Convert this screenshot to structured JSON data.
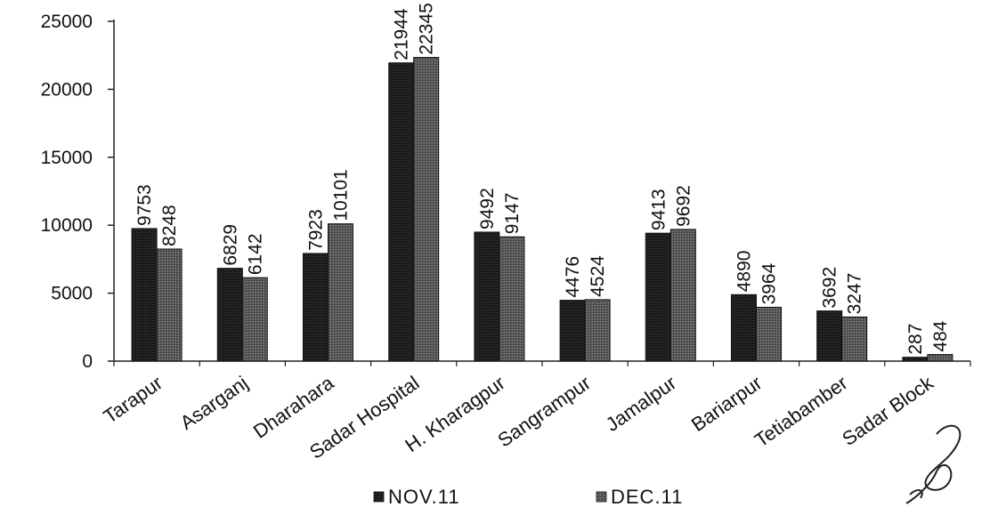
{
  "chart_data": {
    "type": "bar",
    "title": "",
    "xlabel": "",
    "ylabel": "",
    "ylim": [
      0,
      25000
    ],
    "yticks": [
      0,
      5000,
      10000,
      15000,
      20000,
      25000
    ],
    "grid": false,
    "legend_position": "bottom",
    "categories": [
      "Tarapur",
      "Asarganj",
      "Dharahara",
      "Sadar Hospital",
      "H. Kharagpur",
      "Sangrampur",
      "Jamalpur",
      "Bariarpur",
      "Tetiabamber",
      "Sadar Block"
    ],
    "series": [
      {
        "name": "NOV.11",
        "color": "#1c1c1c",
        "values": [
          9753,
          6829,
          7923,
          21944,
          9492,
          4476,
          9413,
          4890,
          3692,
          287
        ]
      },
      {
        "name": "DEC.11",
        "color": "#555555",
        "values": [
          8248,
          6142,
          10101,
          22345,
          9147,
          4524,
          9692,
          3964,
          3247,
          484
        ]
      }
    ]
  }
}
